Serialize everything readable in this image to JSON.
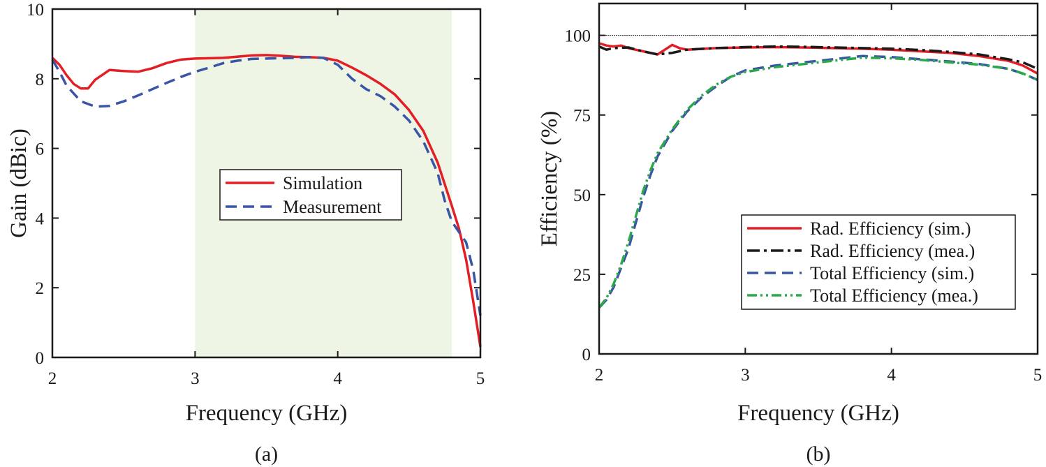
{
  "chart_data": [
    {
      "type": "line",
      "caption": "(a)",
      "xlabel": "Frequency (GHz)",
      "ylabel": "Gain (dBic)",
      "xlim": [
        2,
        5
      ],
      "ylim": [
        0,
        10
      ],
      "xticks": [
        "2",
        "3",
        "4",
        "5"
      ],
      "yticks": [
        "0",
        "2",
        "4",
        "6",
        "8",
        "10"
      ],
      "shaded_band": [
        3,
        4.8
      ],
      "grid": false,
      "legend_placement": "center-right",
      "series": [
        {
          "name": "Simulation",
          "color": "#e31e24",
          "dash": "solid",
          "points": [
            [
              2,
              8.6
            ],
            [
              2.05,
              8.4
            ],
            [
              2.1,
              8.1
            ],
            [
              2.15,
              7.85
            ],
            [
              2.2,
              7.72
            ],
            [
              2.25,
              7.72
            ],
            [
              2.3,
              7.97
            ],
            [
              2.4,
              8.25
            ],
            [
              2.5,
              8.22
            ],
            [
              2.6,
              8.2
            ],
            [
              2.7,
              8.3
            ],
            [
              2.8,
              8.45
            ],
            [
              2.9,
              8.55
            ],
            [
              3.0,
              8.58
            ],
            [
              3.2,
              8.6
            ],
            [
              3.4,
              8.67
            ],
            [
              3.5,
              8.68
            ],
            [
              3.6,
              8.66
            ],
            [
              3.7,
              8.63
            ],
            [
              3.8,
              8.62
            ],
            [
              3.9,
              8.6
            ],
            [
              4.0,
              8.52
            ],
            [
              4.1,
              8.32
            ],
            [
              4.2,
              8.1
            ],
            [
              4.3,
              7.85
            ],
            [
              4.4,
              7.55
            ],
            [
              4.5,
              7.1
            ],
            [
              4.6,
              6.5
            ],
            [
              4.7,
              5.6
            ],
            [
              4.8,
              4.35
            ],
            [
              4.85,
              3.7
            ],
            [
              4.9,
              2.8
            ],
            [
              4.95,
              1.6
            ],
            [
              5.0,
              0.3
            ]
          ]
        },
        {
          "name": "Measurement",
          "color": "#3a55a5",
          "dash": "dashed",
          "points": [
            [
              2,
              8.55
            ],
            [
              2.05,
              8.2
            ],
            [
              2.1,
              7.8
            ],
            [
              2.2,
              7.35
            ],
            [
              2.3,
              7.2
            ],
            [
              2.4,
              7.22
            ],
            [
              2.5,
              7.35
            ],
            [
              2.6,
              7.52
            ],
            [
              2.7,
              7.7
            ],
            [
              2.8,
              7.88
            ],
            [
              2.9,
              8.05
            ],
            [
              3.0,
              8.2
            ],
            [
              3.1,
              8.32
            ],
            [
              3.2,
              8.45
            ],
            [
              3.3,
              8.52
            ],
            [
              3.4,
              8.57
            ],
            [
              3.5,
              8.58
            ],
            [
              3.6,
              8.59
            ],
            [
              3.7,
              8.6
            ],
            [
              3.8,
              8.62
            ],
            [
              3.9,
              8.6
            ],
            [
              4.0,
              8.4
            ],
            [
              4.1,
              8.0
            ],
            [
              4.2,
              7.7
            ],
            [
              4.3,
              7.5
            ],
            [
              4.4,
              7.2
            ],
            [
              4.5,
              6.8
            ],
            [
              4.6,
              6.2
            ],
            [
              4.7,
              5.3
            ],
            [
              4.75,
              4.5
            ],
            [
              4.8,
              3.9
            ],
            [
              4.85,
              3.6
            ],
            [
              4.9,
              3.3
            ],
            [
              4.95,
              2.5
            ],
            [
              5.0,
              1.2
            ]
          ]
        }
      ]
    },
    {
      "type": "line",
      "caption": "(b)",
      "xlabel": "Frequency (GHz)",
      "ylabel": "Efficiency (%)",
      "xlim": [
        2,
        5
      ],
      "ylim": [
        0,
        110
      ],
      "xticks": [
        "2",
        "3",
        "4",
        "5"
      ],
      "yticks": [
        "0",
        "25",
        "50",
        "75",
        "100"
      ],
      "reference_line": 100,
      "grid": false,
      "legend_placement": "bottom-right",
      "series": [
        {
          "name": "Rad. Efficiency (sim.)",
          "color": "#e31e24",
          "dash": "solid",
          "points": [
            [
              2,
              97.5
            ],
            [
              2.05,
              96.8
            ],
            [
              2.1,
              96.5
            ],
            [
              2.15,
              96.8
            ],
            [
              2.2,
              96.0
            ],
            [
              2.3,
              95.0
            ],
            [
              2.4,
              94.0
            ],
            [
              2.45,
              95.5
            ],
            [
              2.5,
              97.0
            ],
            [
              2.55,
              96.0
            ],
            [
              2.6,
              95.5
            ],
            [
              2.8,
              96.0
            ],
            [
              3.0,
              96.2
            ],
            [
              3.2,
              96.3
            ],
            [
              3.4,
              96.2
            ],
            [
              3.6,
              96.0
            ],
            [
              3.8,
              95.8
            ],
            [
              4.0,
              95.5
            ],
            [
              4.2,
              95.0
            ],
            [
              4.4,
              94.5
            ],
            [
              4.6,
              93.5
            ],
            [
              4.8,
              92.0
            ],
            [
              4.9,
              90.5
            ],
            [
              5.0,
              88.0
            ]
          ]
        },
        {
          "name": "Rad. Efficiency (mea.)",
          "color": "#1a1a1a",
          "dash": "dashdot",
          "points": [
            [
              2,
              96.5
            ],
            [
              2.05,
              95.5
            ],
            [
              2.1,
              96.0
            ],
            [
              2.2,
              96.2
            ],
            [
              2.3,
              95.0
            ],
            [
              2.4,
              94.0
            ],
            [
              2.5,
              94.5
            ],
            [
              2.6,
              95.5
            ],
            [
              2.8,
              96.0
            ],
            [
              3.0,
              96.3
            ],
            [
              3.2,
              96.5
            ],
            [
              3.4,
              96.4
            ],
            [
              3.6,
              96.2
            ],
            [
              3.8,
              96.0
            ],
            [
              4.0,
              95.8
            ],
            [
              4.2,
              95.4
            ],
            [
              4.4,
              94.8
            ],
            [
              4.6,
              94.0
            ],
            [
              4.8,
              92.5
            ],
            [
              4.9,
              91.5
            ],
            [
              5.0,
              89.5
            ]
          ]
        },
        {
          "name": "Total Efficiency (sim.)",
          "color": "#3a55a5",
          "dash": "dashed",
          "points": [
            [
              2,
              14.5
            ],
            [
              2.05,
              17.0
            ],
            [
              2.1,
              21.0
            ],
            [
              2.15,
              27.0
            ],
            [
              2.2,
              33.0
            ],
            [
              2.25,
              41.0
            ],
            [
              2.3,
              49.0
            ],
            [
              2.35,
              56.0
            ],
            [
              2.4,
              62.0
            ],
            [
              2.5,
              70.0
            ],
            [
              2.6,
              76.0
            ],
            [
              2.7,
              80.5
            ],
            [
              2.8,
              84.0
            ],
            [
              2.9,
              87.0
            ],
            [
              3.0,
              89.0
            ],
            [
              3.2,
              90.5
            ],
            [
              3.4,
              91.5
            ],
            [
              3.6,
              92.5
            ],
            [
              3.8,
              93.5
            ],
            [
              4.0,
              93.2
            ],
            [
              4.2,
              92.5
            ],
            [
              4.4,
              91.8
            ],
            [
              4.6,
              91.0
            ],
            [
              4.8,
              89.5
            ],
            [
              4.9,
              88.0
            ],
            [
              5.0,
              86.0
            ]
          ]
        },
        {
          "name": "Total Efficiency (mea.)",
          "color": "#2aa84a",
          "dash": "dashdotdot",
          "points": [
            [
              2,
              14.5
            ],
            [
              2.05,
              17.5
            ],
            [
              2.1,
              22.0
            ],
            [
              2.15,
              28.0
            ],
            [
              2.2,
              35.0
            ],
            [
              2.25,
              43.0
            ],
            [
              2.3,
              51.0
            ],
            [
              2.35,
              57.5
            ],
            [
              2.4,
              63.0
            ],
            [
              2.5,
              70.5
            ],
            [
              2.6,
              76.5
            ],
            [
              2.7,
              81.0
            ],
            [
              2.8,
              84.5
            ],
            [
              2.9,
              87.0
            ],
            [
              3.0,
              88.5
            ],
            [
              3.2,
              90.0
            ],
            [
              3.4,
              91.0
            ],
            [
              3.6,
              92.0
            ],
            [
              3.8,
              93.0
            ],
            [
              4.0,
              92.8
            ],
            [
              4.2,
              92.3
            ],
            [
              4.4,
              91.5
            ],
            [
              4.6,
              90.8
            ],
            [
              4.8,
              89.5
            ],
            [
              4.9,
              88.0
            ],
            [
              5.0,
              86.0
            ]
          ]
        }
      ]
    }
  ]
}
